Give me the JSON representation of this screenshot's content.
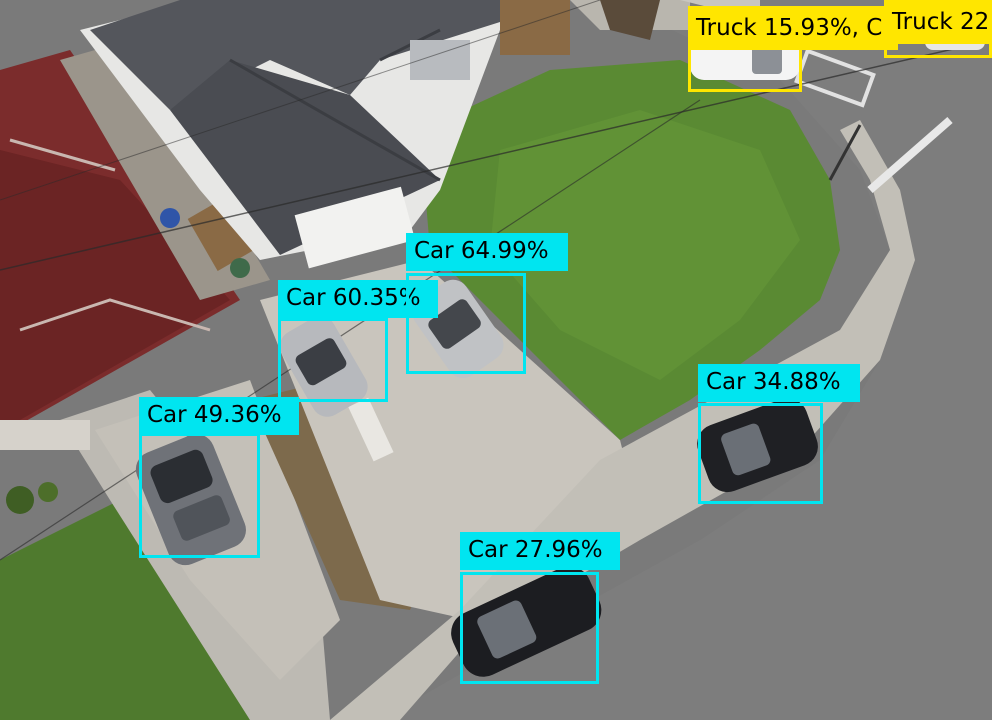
{
  "scene": {
    "description_alt": "Aerial drone view of a residential street corner with houses, lawns, driveways and parked cars"
  },
  "detections": [
    {
      "id": "car-1",
      "class": "Car",
      "confidence": "49.36%",
      "label": "Car 49.36%",
      "color": "#00e5f0"
    },
    {
      "id": "car-2",
      "class": "Car",
      "confidence": "60.35%",
      "label": "Car 60.35%",
      "color": "#00e5f0"
    },
    {
      "id": "car-3",
      "class": "Car",
      "confidence": "64.99%",
      "label": "Car 64.99%",
      "color": "#00e5f0"
    },
    {
      "id": "car-4",
      "class": "Car",
      "confidence": "34.88%",
      "label": "Car 34.88%",
      "color": "#00e5f0"
    },
    {
      "id": "car-5",
      "class": "Car",
      "confidence": "27.96%",
      "label": "Car 27.96%",
      "color": "#00e5f0"
    },
    {
      "id": "truck-1",
      "class": "Truck",
      "confidence": "15.93%",
      "label": "Truck 15.93%, C",
      "color": "#ffe600"
    },
    {
      "id": "truck-2",
      "class": "Truck",
      "confidence": "22",
      "label": "Truck 22",
      "color": "#ffe600"
    }
  ]
}
